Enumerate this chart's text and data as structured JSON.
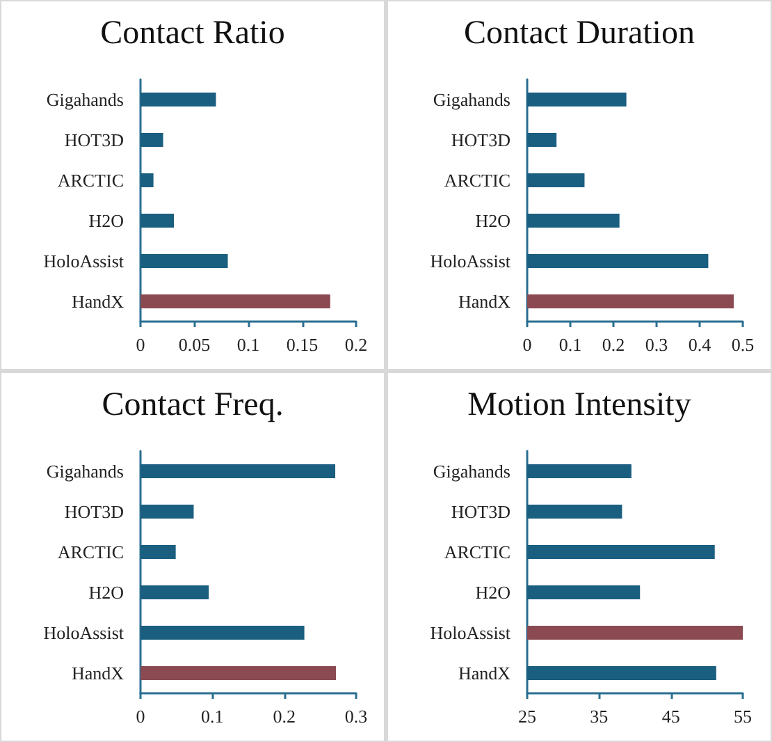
{
  "chart_data": [
    {
      "type": "bar",
      "orientation": "horizontal",
      "title": "Contact Ratio",
      "categories": [
        "Gigahands",
        "HOT3D",
        "ARCTIC",
        "H2O",
        "HoloAssist",
        "HandX"
      ],
      "values": [
        0.07,
        0.021,
        0.012,
        0.031,
        0.081,
        0.176
      ],
      "colors": [
        "#1a5e80",
        "#1a5e80",
        "#1a5e80",
        "#1a5e80",
        "#1a5e80",
        "#8b4a52"
      ],
      "xlim": [
        0,
        0.2
      ],
      "xticks": [
        0,
        0.05,
        0.1,
        0.15,
        0.2
      ],
      "grid": false
    },
    {
      "type": "bar",
      "orientation": "horizontal",
      "title": "Contact Duration",
      "categories": [
        "Gigahands",
        "HOT3D",
        "ARCTIC",
        "H2O",
        "HoloAssist",
        "HandX"
      ],
      "values": [
        0.23,
        0.068,
        0.133,
        0.214,
        0.42,
        0.479
      ],
      "colors": [
        "#1a5e80",
        "#1a5e80",
        "#1a5e80",
        "#1a5e80",
        "#1a5e80",
        "#8b4a52"
      ],
      "xlim": [
        0,
        0.5
      ],
      "xticks": [
        0,
        0.1,
        0.2,
        0.3,
        0.4,
        0.5
      ],
      "grid": false
    },
    {
      "type": "bar",
      "orientation": "horizontal",
      "title": "Contact Freq.",
      "categories": [
        "Gigahands",
        "HOT3D",
        "ARCTIC",
        "H2O",
        "HoloAssist",
        "HandX"
      ],
      "values": [
        0.271,
        0.074,
        0.049,
        0.095,
        0.228,
        0.272
      ],
      "colors": [
        "#1a5e80",
        "#1a5e80",
        "#1a5e80",
        "#1a5e80",
        "#1a5e80",
        "#8b4a52"
      ],
      "xlim": [
        0,
        0.3
      ],
      "xticks": [
        0,
        0.1,
        0.2,
        0.3
      ],
      "grid": false
    },
    {
      "type": "bar",
      "orientation": "horizontal",
      "title": "Motion Intensity",
      "categories": [
        "Gigahands",
        "HOT3D",
        "ARCTIC",
        "H2O",
        "HoloAssist",
        "HandX"
      ],
      "values": [
        39.5,
        38.2,
        51.1,
        40.7,
        55,
        51.3
      ],
      "colors": [
        "#1a5e80",
        "#1a5e80",
        "#1a5e80",
        "#1a5e80",
        "#8b4a52",
        "#1a5e80"
      ],
      "xlim": [
        25,
        55
      ],
      "xticks": [
        25,
        35,
        45,
        55
      ],
      "grid": false
    }
  ]
}
